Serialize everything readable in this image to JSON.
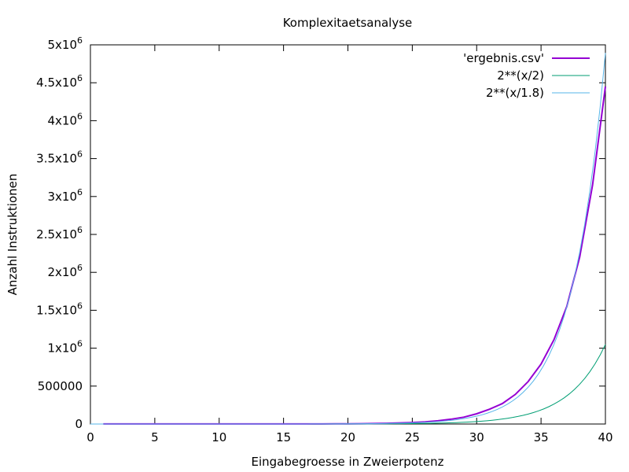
{
  "chart_data": {
    "type": "line",
    "title": "Komplexitaetsanalyse",
    "xlabel": "Eingabegroesse in Zweierpotenz",
    "ylabel": "Anzahl Instruktionen",
    "xlim": [
      0,
      40
    ],
    "ylim": [
      0,
      5000000
    ],
    "xticks": [
      0,
      5,
      10,
      15,
      20,
      25,
      30,
      35,
      40
    ],
    "xtick_labels": [
      "0",
      "5",
      "10",
      "15",
      "20",
      "25",
      "30",
      "35",
      "40"
    ],
    "yticks": [
      0,
      500000,
      1000000,
      1500000,
      2000000,
      2500000,
      3000000,
      3500000,
      4000000,
      4500000,
      5000000
    ],
    "ytick_labels": [
      {
        "base": "0",
        "exp": ""
      },
      {
        "base": "500000",
        "exp": ""
      },
      {
        "base": "1x10",
        "exp": "6"
      },
      {
        "base": "1.5x10",
        "exp": "6"
      },
      {
        "base": "2x10",
        "exp": "6"
      },
      {
        "base": "2.5x10",
        "exp": "6"
      },
      {
        "base": "3x10",
        "exp": "6"
      },
      {
        "base": "3.5x10",
        "exp": "6"
      },
      {
        "base": "4x10",
        "exp": "6"
      },
      {
        "base": "4.5x10",
        "exp": "6"
      },
      {
        "base": "5x10",
        "exp": "6"
      }
    ],
    "grid": false,
    "legend_position": "top-right",
    "series": [
      {
        "name": "'ergebnis.csv'",
        "color": "#9400D3",
        "kind": "data",
        "x": [
          1,
          2,
          3,
          4,
          5,
          6,
          7,
          8,
          9,
          10,
          11,
          12,
          13,
          14,
          15,
          16,
          17,
          18,
          19,
          20,
          21,
          22,
          23,
          24,
          25,
          26,
          27,
          28,
          29,
          30,
          31,
          32,
          33,
          34,
          35,
          36,
          37,
          38,
          39,
          40
        ],
        "y": [
          1000,
          1000,
          1000,
          1000,
          1000,
          1000,
          1000,
          1000,
          1000,
          1000,
          1000,
          1000,
          1000,
          1000,
          1000,
          1000,
          1000,
          1500,
          2000,
          3000,
          4500,
          6500,
          9500,
          14000,
          20000,
          29000,
          43000,
          63000,
          90000,
          135000,
          195000,
          270000,
          390000,
          560000,
          790000,
          1110000,
          1550000,
          2200000,
          3150000,
          4450000
        ]
      },
      {
        "name": "2**(x/2)",
        "color": "#009E73",
        "kind": "function",
        "expr": "2**(x/2)",
        "divisor": 2
      },
      {
        "name": "2**(x/1.8)",
        "color": "#56B4E9",
        "kind": "function",
        "expr": "2**(x/1.8)",
        "divisor": 1.8
      }
    ]
  }
}
